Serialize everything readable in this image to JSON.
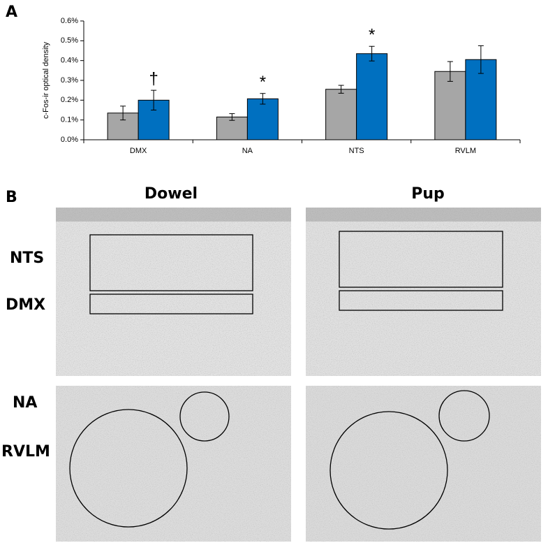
{
  "chart_data": {
    "type": "bar",
    "y_label": "c-Fos-ir optical density",
    "categories": [
      "DMX",
      "NA",
      "NTS",
      "RVLM"
    ],
    "series": [
      {
        "color": "#a6a6a6",
        "values": [
          0.135,
          0.115,
          0.255,
          0.345
        ],
        "errors": [
          0.035,
          0.017,
          0.02,
          0.05
        ]
      },
      {
        "color": "#0070c0",
        "values": [
          0.2,
          0.207,
          0.435,
          0.405
        ],
        "errors": [
          0.05,
          0.027,
          0.037,
          0.07
        ]
      }
    ],
    "annotations": [
      "†",
      "*",
      "*",
      null
    ],
    "ylim": [
      0,
      0.6
    ],
    "yticks": [
      {
        "value": 0,
        "label": "0.0%"
      },
      {
        "value": 0.1,
        "label": "0.1%"
      },
      {
        "value": 0.2,
        "label": "0.2%"
      },
      {
        "value": 0.3,
        "label": "0.3%"
      },
      {
        "value": 0.4,
        "label": "0.4%"
      },
      {
        "value": 0.5,
        "label": "0.5%"
      },
      {
        "value": 0.6,
        "label": "0.6%"
      }
    ],
    "grid": false
  },
  "panel_labels": [
    "A",
    "B"
  ],
  "panel_b": {
    "columns": [
      "Dowel",
      "Pup"
    ],
    "regions": [
      "NTS",
      "DMX",
      "NA",
      "RVLM"
    ]
  }
}
